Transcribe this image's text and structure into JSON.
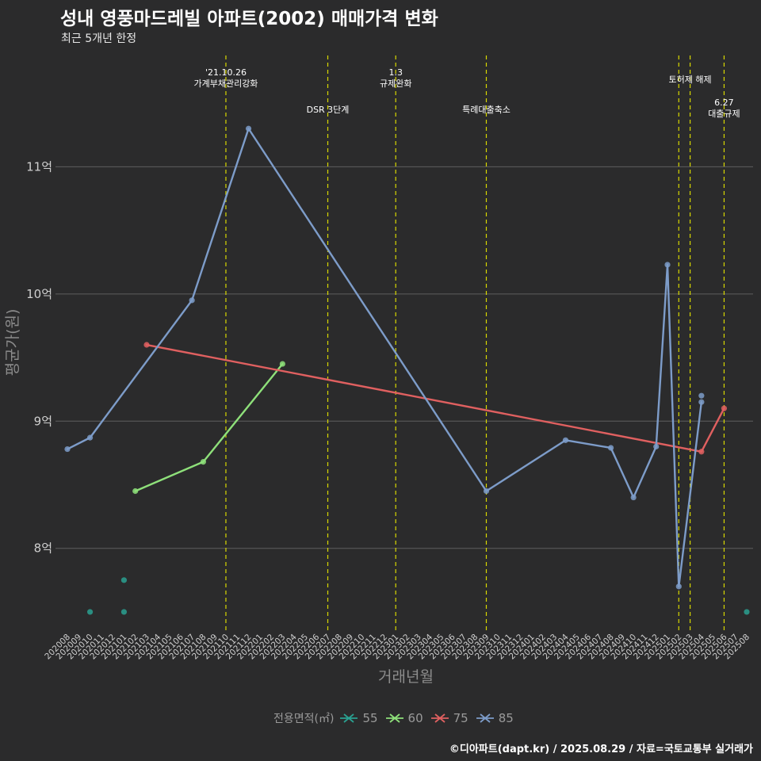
{
  "chart_data": {
    "type": "line",
    "title": "성내 영풍마드레빌 아파트(2002) 매매가격 변화",
    "subtitle": "최근 5개년 한정",
    "xlabel": "거래년월",
    "ylabel": "평균가(원)",
    "ylim": [
      7.35,
      11.9
    ],
    "y_ticks": [
      {
        "value": 8,
        "label": "8억"
      },
      {
        "value": 9,
        "label": "9억"
      },
      {
        "value": 10,
        "label": "10억"
      },
      {
        "value": 11,
        "label": "11억"
      }
    ],
    "categories": [
      "202008",
      "202009",
      "202010",
      "202011",
      "202012",
      "202101",
      "202102",
      "202103",
      "202104",
      "202105",
      "202106",
      "202107",
      "202108",
      "202109",
      "202110",
      "202111",
      "202112",
      "202201",
      "202202",
      "202203",
      "202204",
      "202205",
      "202206",
      "202207",
      "202208",
      "202209",
      "202210",
      "202211",
      "202212",
      "202301",
      "202302",
      "202303",
      "202304",
      "202305",
      "202306",
      "202307",
      "202308",
      "202309",
      "202310",
      "202311",
      "202312",
      "202401",
      "202402",
      "202403",
      "202404",
      "202405",
      "202406",
      "202407",
      "202408",
      "202409",
      "202410",
      "202411",
      "202412",
      "202501",
      "202502",
      "202503",
      "202504",
      "202505",
      "202506",
      "202507",
      "202508"
    ],
    "series": [
      {
        "name": "55",
        "color": "#2aa090",
        "show_line": false,
        "points": [
          [
            "202010",
            7.5
          ],
          [
            "202101",
            7.75
          ],
          [
            "202101",
            7.5
          ],
          [
            "202508",
            7.5
          ]
        ]
      },
      {
        "name": "60",
        "color": "#8ee07a",
        "show_line": true,
        "points": [
          [
            "202102",
            8.45
          ],
          [
            "202108",
            8.68
          ],
          [
            "202203",
            9.45
          ]
        ]
      },
      {
        "name": "75",
        "color": "#e06060",
        "show_line": true,
        "points": [
          [
            "202103",
            9.6
          ],
          [
            "202504",
            8.76
          ],
          [
            "202506",
            9.1
          ]
        ]
      },
      {
        "name": "85",
        "color": "#7d9cc9",
        "show_line": true,
        "points": [
          [
            "202008",
            8.78
          ],
          [
            "202010",
            8.87
          ],
          [
            "202107",
            9.95
          ],
          [
            "202112",
            11.3
          ],
          [
            "202309",
            8.45
          ],
          [
            "202404",
            8.85
          ],
          [
            "202408",
            8.79
          ],
          [
            "202410",
            8.4
          ],
          [
            "202412",
            8.8
          ],
          [
            "202501",
            10.23
          ],
          [
            "202502",
            7.7
          ],
          [
            "202504",
            9.15
          ]
        ]
      },
      {
        "name": "85",
        "color": "#7d9cc9",
        "show_line": false,
        "points": [
          [
            "202504",
            9.2
          ]
        ]
      }
    ],
    "legend_title": "전용면적(㎡)",
    "legend_position": "bottom",
    "legend_items": [
      {
        "label": "55",
        "color": "#2aa090"
      },
      {
        "label": "60",
        "color": "#8ee07a"
      },
      {
        "label": "75",
        "color": "#e06060"
      },
      {
        "label": "85",
        "color": "#7d9cc9"
      }
    ],
    "events": [
      {
        "month": "202110",
        "lines": [
          "'21.10.26",
          "가계부채관리강화"
        ],
        "level": 1
      },
      {
        "month": "202207",
        "lines": [
          "DSR 3단계"
        ],
        "level": 3
      },
      {
        "month": "202301",
        "lines": [
          "1.3",
          "규제완화"
        ],
        "level": 1
      },
      {
        "month": "202309",
        "lines": [
          "특례대출축소"
        ],
        "level": 3
      },
      {
        "month": "202502",
        "lines": [],
        "level": 0
      },
      {
        "month": "202503",
        "lines": [
          "토허제 해제"
        ],
        "level": 2
      },
      {
        "month": "202506",
        "lines": [
          "6.27",
          "대출규제"
        ],
        "level": 4
      }
    ],
    "event_line_color": "#d8d800",
    "grid": true
  },
  "credit": "©디아파트(dapt.kr) / 2025.08.29 / 자료=국토교통부 실거래가"
}
